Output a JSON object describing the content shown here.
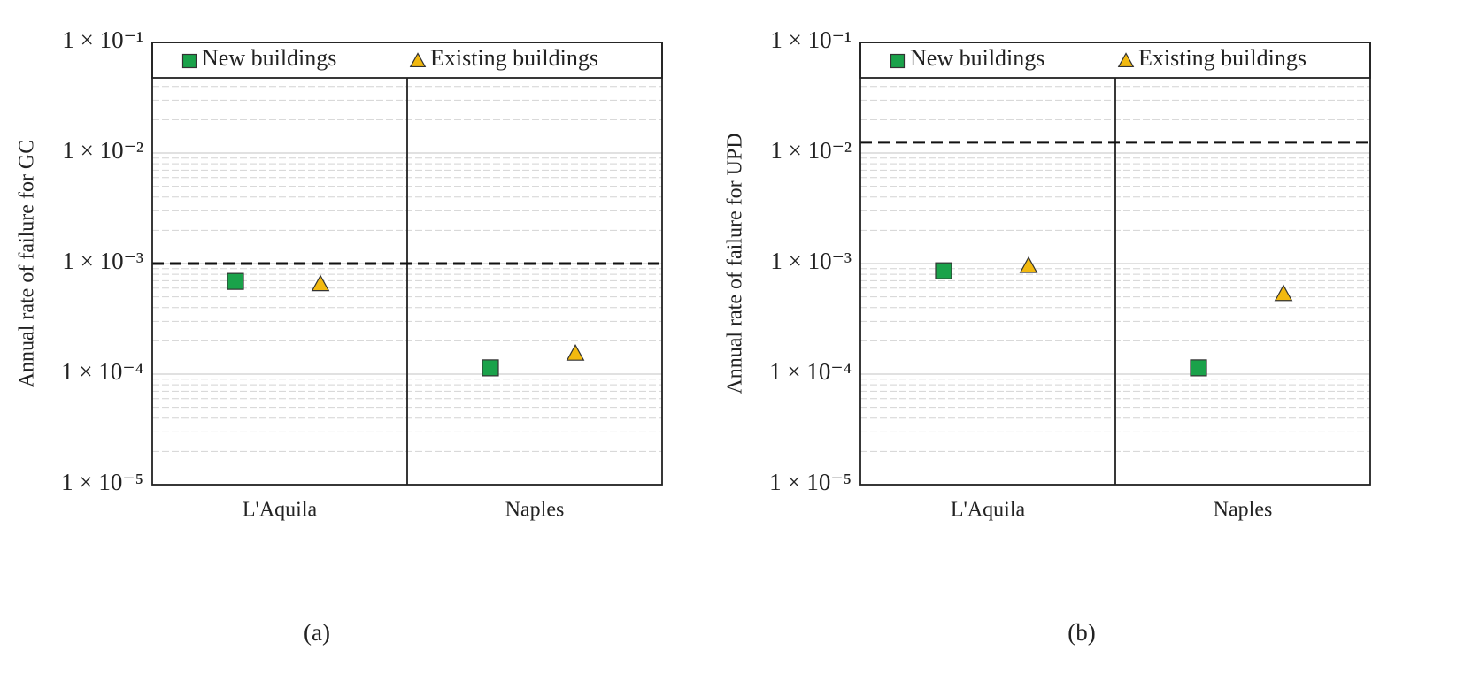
{
  "chart_data": [
    {
      "type": "scatter",
      "caption": "(a)",
      "y_label": "Annual rate of failure for GC",
      "categories": [
        "L'Aquila",
        "Naples"
      ],
      "series": [
        {
          "name": "New buildings",
          "color": "#1aa24a",
          "marker": "square",
          "values": [
            0.00069,
            0.000114
          ]
        },
        {
          "name": "Existing buildings",
          "color": "#f2b90f",
          "marker": "triangle",
          "values": [
            0.00065,
            0.000153
          ]
        }
      ],
      "reference_line": 0.001,
      "log_scale": true,
      "grid": true,
      "legend": "top",
      "ylim": [
        1e-05,
        0.1
      ],
      "yticks": [
        {
          "value": 1e-05,
          "label": "1 × 10⁻⁵"
        },
        {
          "value": 0.0001,
          "label": "1 × 10⁻⁴"
        },
        {
          "value": 0.001,
          "label": "1 × 10⁻³"
        },
        {
          "value": 0.01,
          "label": "1 × 10⁻²"
        },
        {
          "value": 0.1,
          "label": "1 × 10⁻¹"
        }
      ],
      "minor_yticks": [
        2e-05,
        3e-05,
        4e-05,
        5e-05,
        6e-05,
        7e-05,
        8e-05,
        9e-05,
        0.0002,
        0.0003,
        0.0004,
        0.0005,
        0.0006,
        0.0007,
        0.0008,
        0.0009,
        0.002,
        0.003,
        0.004,
        0.005,
        0.006,
        0.007,
        0.008,
        0.009,
        0.02,
        0.03,
        0.04,
        0.05,
        0.06,
        0.07,
        0.08,
        0.09
      ]
    },
    {
      "type": "scatter",
      "caption": "(b)",
      "y_label": "Annual rate of failure for UPD",
      "categories": [
        "L'Aquila",
        "Naples"
      ],
      "series": [
        {
          "name": "New buildings",
          "color": "#1aa24a",
          "marker": "square",
          "values": [
            0.00086,
            0.000114
          ]
        },
        {
          "name": "Existing buildings",
          "color": "#f2b90f",
          "marker": "triangle",
          "values": [
            0.00095,
            0.00053
          ]
        }
      ],
      "reference_line": 0.0125,
      "log_scale": true,
      "grid": true,
      "legend": "top",
      "ylim": [
        1e-05,
        0.1
      ],
      "yticks": [
        {
          "value": 1e-05,
          "label": "1 × 10⁻⁵"
        },
        {
          "value": 0.0001,
          "label": "1 × 10⁻⁴"
        },
        {
          "value": 0.001,
          "label": "1 × 10⁻³"
        },
        {
          "value": 0.01,
          "label": "1 × 10⁻²"
        },
        {
          "value": 0.1,
          "label": "1 × 10⁻¹"
        }
      ],
      "minor_yticks": [
        2e-05,
        3e-05,
        4e-05,
        5e-05,
        6e-05,
        7e-05,
        8e-05,
        9e-05,
        0.0002,
        0.0003,
        0.0004,
        0.0005,
        0.0006,
        0.0007,
        0.0008,
        0.0009,
        0.002,
        0.003,
        0.004,
        0.005,
        0.006,
        0.007,
        0.008,
        0.009,
        0.02,
        0.03,
        0.04,
        0.05,
        0.06,
        0.07,
        0.08,
        0.09
      ]
    }
  ]
}
